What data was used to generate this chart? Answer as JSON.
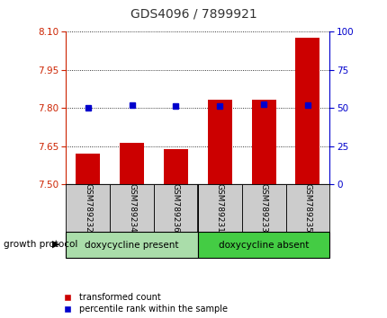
{
  "title": "GDS4096 / 7899921",
  "categories": [
    "GSM789232",
    "GSM789234",
    "GSM789236",
    "GSM789231",
    "GSM789233",
    "GSM789235"
  ],
  "bar_values": [
    7.62,
    7.665,
    7.638,
    7.832,
    7.833,
    8.075
  ],
  "percentile_values": [
    50.5,
    52.0,
    51.5,
    51.5,
    52.5,
    52.0
  ],
  "bar_color": "#cc0000",
  "blue_color": "#0000cc",
  "ylim_left": [
    7.5,
    8.1
  ],
  "ylim_right": [
    0,
    100
  ],
  "yticks_left": [
    7.5,
    7.65,
    7.8,
    7.95,
    8.1
  ],
  "yticks_right": [
    0,
    25,
    50,
    75,
    100
  ],
  "group1_label": "doxycycline present",
  "group2_label": "doxycycline absent",
  "group1_color": "#aaddaa",
  "group2_color": "#44cc44",
  "legend_label1": "transformed count",
  "legend_label2": "percentile rank within the sample",
  "protocol_label": "growth protocol",
  "title_color": "#333333",
  "left_axis_color": "#cc2200",
  "right_axis_color": "#0000cc",
  "gray_box_color": "#cccccc"
}
